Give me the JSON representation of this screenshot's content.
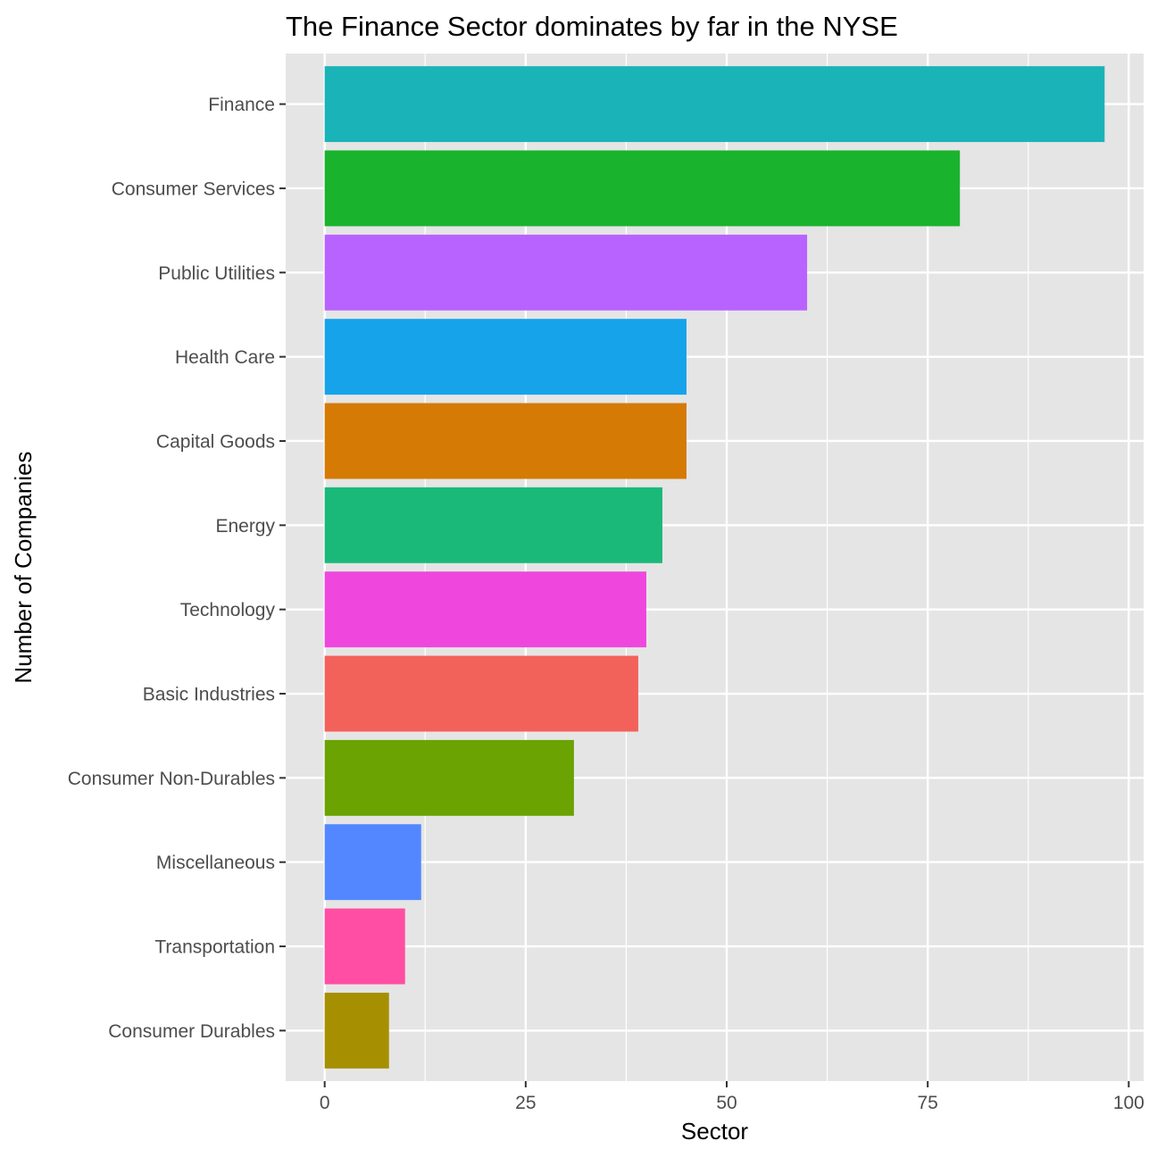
{
  "chart_data": {
    "type": "bar",
    "orientation": "horizontal",
    "title": "The Finance Sector dominates by far in the NYSE",
    "xlabel": "Sector",
    "ylabel": "Number of Companies",
    "categories": [
      "Finance",
      "Consumer Services",
      "Public Utilities",
      "Health Care",
      "Capital Goods",
      "Energy",
      "Technology",
      "Basic Industries",
      "Consumer Non-Durables",
      "Miscellaneous",
      "Transportation",
      "Consumer Durables"
    ],
    "values": [
      97,
      79,
      60,
      45,
      45,
      42,
      40,
      39,
      31,
      12,
      10,
      8
    ],
    "colors": [
      "#1AB3B8",
      "#1AB32E",
      "#B863FF",
      "#16A3EA",
      "#D57A05",
      "#1AB97A",
      "#EF46DE",
      "#F3615B",
      "#6BA303",
      "#5287FF",
      "#FF4EA3",
      "#A68F01"
    ],
    "x_ticks": [
      0,
      25,
      50,
      75,
      100
    ],
    "xlim": [
      -4.85,
      101.85
    ],
    "grid": true,
    "legend": "none",
    "panel_background": "#E5E5E5",
    "grid_color": "#FFFFFF"
  }
}
